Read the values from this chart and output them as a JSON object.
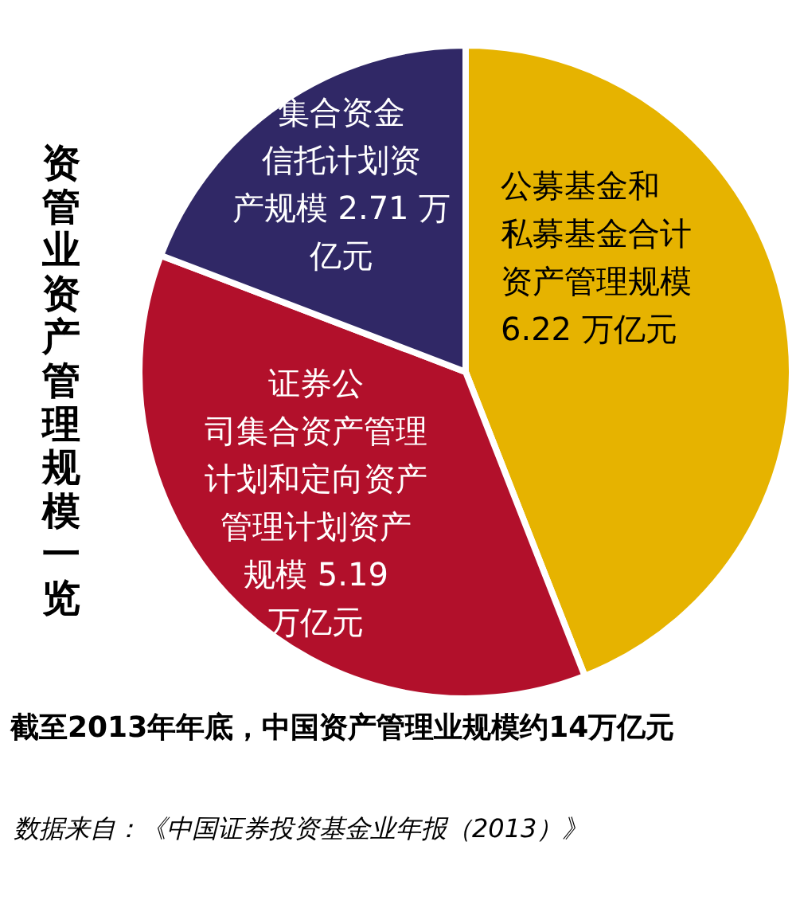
{
  "chart_data": {
    "type": "pie",
    "title": "资管业资产管理规模一览",
    "categories": [
      "公募基金和私募基金合计资产管理规模",
      "证券公司集合资产管理计划和定向资产管理计划资产规模",
      "集合资金信托计划资产规模"
    ],
    "values": [
      6.22,
      5.19,
      2.71
    ],
    "value_labels": [
      "6.22 万亿元",
      "5.19 万亿元",
      "2.71 万亿元"
    ],
    "colors": [
      "#e6b300",
      "#b2102b",
      "#302866"
    ],
    "annotations": [
      "截至2013年年底，中国资产管理业规模约14万亿元",
      "数据来自：《中国证券投资基金业年报（2013）》"
    ]
  }
}
